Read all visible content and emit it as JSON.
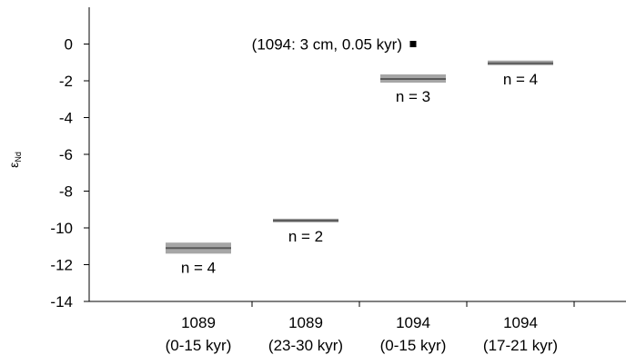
{
  "chart_data": {
    "type": "scatter",
    "title": "",
    "xlabel": "",
    "ylabel": "εNd",
    "ylabel_main": "ε",
    "ylabel_sub": "Nd",
    "ylim": [
      -14,
      2
    ],
    "yticks": [
      0,
      -2,
      -4,
      -6,
      -8,
      -10,
      -12,
      -14
    ],
    "ytick_labels": [
      "0",
      "-2",
      "-4",
      "-6",
      "-8",
      "-10",
      "-12",
      "-14"
    ],
    "grid": false,
    "categories": [
      {
        "line1": "1089",
        "line2": "(0-15 kyr)"
      },
      {
        "line1": "1089",
        "line2": "(23-30 kyr)"
      },
      {
        "line1": "1094",
        "line2": "(0-15 kyr)"
      },
      {
        "line1": "1094",
        "line2": "(17-21 kyr)"
      }
    ],
    "groups": [
      {
        "category_index": 0,
        "mean": -11.1,
        "low": -11.4,
        "high": -10.8,
        "label": "n = 4"
      },
      {
        "category_index": 1,
        "mean": -9.6,
        "low": -9.7,
        "high": -9.5,
        "label": "n = 2"
      },
      {
        "category_index": 2,
        "mean": -1.9,
        "low": -2.1,
        "high": -1.65,
        "label": "n = 3"
      },
      {
        "category_index": 3,
        "mean": -1.05,
        "low": -1.15,
        "high": -0.9,
        "label": "n = 4"
      }
    ],
    "single_point": {
      "category_index": 2,
      "y": 0,
      "label": "(1094: 3 cm, 0.05 kyr)"
    },
    "colors": {
      "band": "#a6a6a6",
      "mean_line": "#595959",
      "point": "#000000",
      "axis": "#000000"
    }
  }
}
